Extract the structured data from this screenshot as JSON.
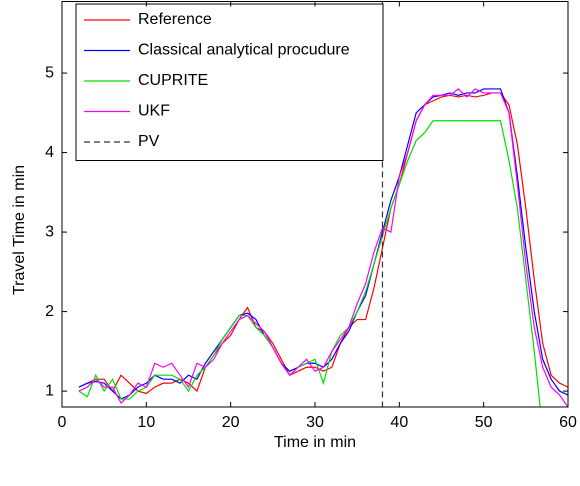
{
  "chart_data": {
    "type": "line",
    "xlabel": "Time in min",
    "ylabel": "Travel Time in min",
    "x": [
      2,
      3,
      4,
      5,
      6,
      7,
      8,
      9,
      10,
      11,
      12,
      13,
      14,
      15,
      16,
      17,
      18,
      19,
      20,
      21,
      22,
      23,
      24,
      25,
      26,
      27,
      28,
      29,
      30,
      31,
      32,
      33,
      34,
      35,
      36,
      37,
      38,
      39,
      40,
      41,
      42,
      43,
      44,
      45,
      46,
      47,
      48,
      49,
      50,
      51,
      52,
      53,
      54,
      55,
      56,
      57,
      58,
      59,
      60
    ],
    "series": [
      {
        "name": "Reference",
        "color": "#ff0000",
        "values": [
          1.05,
          1.1,
          1.15,
          1.15,
          1.0,
          1.2,
          1.1,
          1.0,
          0.97,
          1.05,
          1.1,
          1.1,
          1.15,
          1.1,
          1.0,
          1.3,
          1.45,
          1.6,
          1.7,
          1.9,
          2.05,
          1.8,
          1.75,
          1.6,
          1.4,
          1.2,
          1.25,
          1.3,
          1.3,
          1.25,
          1.3,
          1.6,
          1.8,
          1.9,
          1.9,
          2.3,
          2.8,
          3.3,
          3.6,
          4.0,
          4.4,
          4.6,
          4.65,
          4.7,
          4.72,
          4.7,
          4.72,
          4.7,
          4.72,
          4.75,
          4.75,
          4.6,
          4.1,
          3.3,
          2.4,
          1.6,
          1.2,
          1.1,
          1.05
        ]
      },
      {
        "name": "Classical analytical procudure",
        "color": "#0000ff",
        "values": [
          1.05,
          1.1,
          1.12,
          1.1,
          1.0,
          0.9,
          0.95,
          1.05,
          1.1,
          1.2,
          1.15,
          1.15,
          1.1,
          1.2,
          1.15,
          1.35,
          1.5,
          1.65,
          1.8,
          1.95,
          1.98,
          1.9,
          1.7,
          1.55,
          1.35,
          1.25,
          1.3,
          1.35,
          1.35,
          1.3,
          1.4,
          1.6,
          1.75,
          2.0,
          2.2,
          2.6,
          3.0,
          3.4,
          3.7,
          4.1,
          4.5,
          4.6,
          4.7,
          4.72,
          4.75,
          4.72,
          4.75,
          4.75,
          4.8,
          4.8,
          4.8,
          4.5,
          3.7,
          2.8,
          2.0,
          1.4,
          1.15,
          1.0,
          0.95
        ]
      },
      {
        "name": "CUPRITE",
        "color": "#00e000",
        "values": [
          1.0,
          0.93,
          1.2,
          1.0,
          1.15,
          0.9,
          0.9,
          1.0,
          1.05,
          1.2,
          1.2,
          1.2,
          1.15,
          1.0,
          1.2,
          1.3,
          1.45,
          1.65,
          1.8,
          1.95,
          1.95,
          1.8,
          1.7,
          1.55,
          1.35,
          1.2,
          1.3,
          1.35,
          1.4,
          1.1,
          1.5,
          1.7,
          1.8,
          2.0,
          2.25,
          2.6,
          2.95,
          3.3,
          3.6,
          3.9,
          4.15,
          4.25,
          4.4,
          4.4,
          4.4,
          4.4,
          4.4,
          4.4,
          4.4,
          4.4,
          4.4,
          3.9,
          3.3,
          2.4,
          1.5,
          0.5,
          null,
          null,
          null
        ]
      },
      {
        "name": "UKF",
        "color": "#ff00ff",
        "values": [
          1.0,
          1.05,
          1.15,
          1.05,
          1.05,
          0.85,
          0.95,
          1.1,
          1.05,
          1.35,
          1.3,
          1.35,
          1.2,
          1.05,
          1.35,
          1.3,
          1.4,
          1.6,
          1.75,
          1.9,
          1.95,
          1.85,
          1.75,
          1.55,
          1.35,
          1.2,
          1.3,
          1.4,
          1.25,
          1.3,
          1.5,
          1.65,
          1.8,
          2.1,
          2.35,
          2.75,
          3.05,
          3.0,
          3.7,
          4.0,
          4.4,
          4.6,
          4.72,
          4.72,
          4.72,
          4.8,
          4.7,
          4.8,
          4.75,
          4.75,
          4.75,
          4.5,
          3.6,
          2.6,
          1.8,
          1.3,
          1.05,
          0.95,
          0.8
        ]
      }
    ],
    "vlines": [
      {
        "name": "PV",
        "x": 38,
        "color": "#333333",
        "dashed": true
      }
    ],
    "xlim": [
      0,
      60
    ],
    "xticks": [
      0,
      10,
      20,
      30,
      40,
      50,
      60
    ],
    "ylim": [
      0.8,
      5.9
    ],
    "yticks": [
      1,
      2,
      3,
      4,
      5
    ],
    "legend": "upper left"
  }
}
